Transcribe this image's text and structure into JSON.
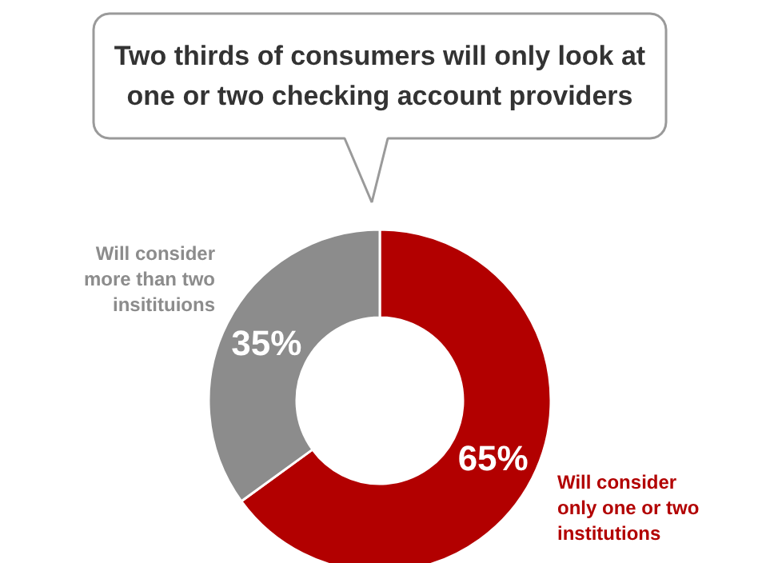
{
  "chart_data": {
    "type": "donut",
    "title": "Two thirds of consumers will only look at\none or two checking account providers",
    "categories": [
      "Will consider\nonly one or two\ninstitutions",
      "Will consider\nmore than two\ninsitituions"
    ],
    "values": [
      65,
      35
    ],
    "colors": [
      "#b20000",
      "#8c8c8c"
    ],
    "value_labels": [
      "65%",
      "35%"
    ]
  }
}
